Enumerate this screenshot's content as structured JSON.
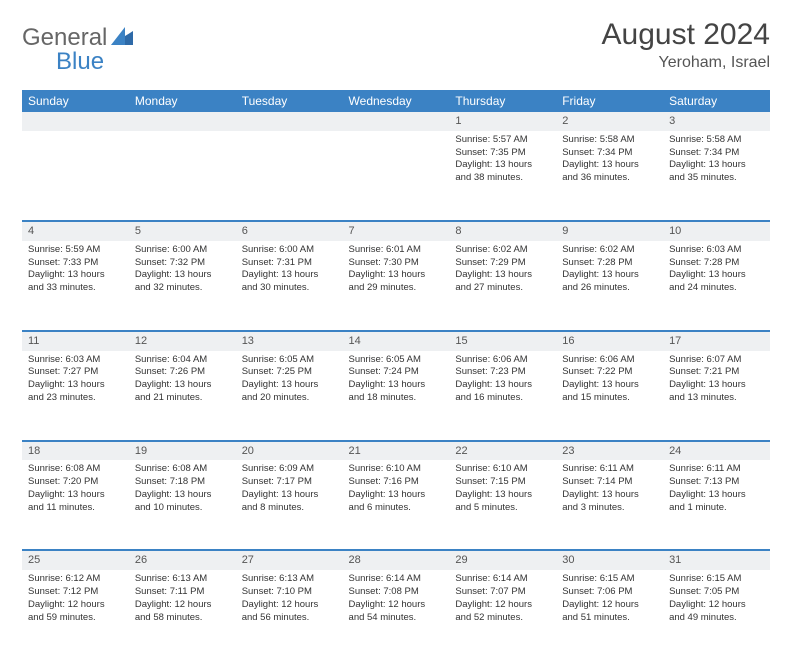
{
  "brand": {
    "part1": "General",
    "part2": "Blue"
  },
  "title": "August 2024",
  "location": "Yeroham, Israel",
  "colors": {
    "header_bg": "#3b82c4",
    "header_text": "#ffffff",
    "daynum_bg": "#eef0f2",
    "row_divider": "#3b82c4",
    "text": "#333333",
    "logo_gray": "#666666",
    "logo_blue": "#3b82c4"
  },
  "layout": {
    "cols": 7,
    "weeks": 5,
    "fontsize_header": 12,
    "fontsize_daynum": 11,
    "fontsize_cell": 9.5
  },
  "weekdays": [
    "Sunday",
    "Monday",
    "Tuesday",
    "Wednesday",
    "Thursday",
    "Friday",
    "Saturday"
  ],
  "weeks": [
    [
      null,
      null,
      null,
      null,
      {
        "n": "1",
        "sr": "5:57 AM",
        "ss": "7:35 PM",
        "dl": "13 hours and 38 minutes."
      },
      {
        "n": "2",
        "sr": "5:58 AM",
        "ss": "7:34 PM",
        "dl": "13 hours and 36 minutes."
      },
      {
        "n": "3",
        "sr": "5:58 AM",
        "ss": "7:34 PM",
        "dl": "13 hours and 35 minutes."
      }
    ],
    [
      {
        "n": "4",
        "sr": "5:59 AM",
        "ss": "7:33 PM",
        "dl": "13 hours and 33 minutes."
      },
      {
        "n": "5",
        "sr": "6:00 AM",
        "ss": "7:32 PM",
        "dl": "13 hours and 32 minutes."
      },
      {
        "n": "6",
        "sr": "6:00 AM",
        "ss": "7:31 PM",
        "dl": "13 hours and 30 minutes."
      },
      {
        "n": "7",
        "sr": "6:01 AM",
        "ss": "7:30 PM",
        "dl": "13 hours and 29 minutes."
      },
      {
        "n": "8",
        "sr": "6:02 AM",
        "ss": "7:29 PM",
        "dl": "13 hours and 27 minutes."
      },
      {
        "n": "9",
        "sr": "6:02 AM",
        "ss": "7:28 PM",
        "dl": "13 hours and 26 minutes."
      },
      {
        "n": "10",
        "sr": "6:03 AM",
        "ss": "7:28 PM",
        "dl": "13 hours and 24 minutes."
      }
    ],
    [
      {
        "n": "11",
        "sr": "6:03 AM",
        "ss": "7:27 PM",
        "dl": "13 hours and 23 minutes."
      },
      {
        "n": "12",
        "sr": "6:04 AM",
        "ss": "7:26 PM",
        "dl": "13 hours and 21 minutes."
      },
      {
        "n": "13",
        "sr": "6:05 AM",
        "ss": "7:25 PM",
        "dl": "13 hours and 20 minutes."
      },
      {
        "n": "14",
        "sr": "6:05 AM",
        "ss": "7:24 PM",
        "dl": "13 hours and 18 minutes."
      },
      {
        "n": "15",
        "sr": "6:06 AM",
        "ss": "7:23 PM",
        "dl": "13 hours and 16 minutes."
      },
      {
        "n": "16",
        "sr": "6:06 AM",
        "ss": "7:22 PM",
        "dl": "13 hours and 15 minutes."
      },
      {
        "n": "17",
        "sr": "6:07 AM",
        "ss": "7:21 PM",
        "dl": "13 hours and 13 minutes."
      }
    ],
    [
      {
        "n": "18",
        "sr": "6:08 AM",
        "ss": "7:20 PM",
        "dl": "13 hours and 11 minutes."
      },
      {
        "n": "19",
        "sr": "6:08 AM",
        "ss": "7:18 PM",
        "dl": "13 hours and 10 minutes."
      },
      {
        "n": "20",
        "sr": "6:09 AM",
        "ss": "7:17 PM",
        "dl": "13 hours and 8 minutes."
      },
      {
        "n": "21",
        "sr": "6:10 AM",
        "ss": "7:16 PM",
        "dl": "13 hours and 6 minutes."
      },
      {
        "n": "22",
        "sr": "6:10 AM",
        "ss": "7:15 PM",
        "dl": "13 hours and 5 minutes."
      },
      {
        "n": "23",
        "sr": "6:11 AM",
        "ss": "7:14 PM",
        "dl": "13 hours and 3 minutes."
      },
      {
        "n": "24",
        "sr": "6:11 AM",
        "ss": "7:13 PM",
        "dl": "13 hours and 1 minute."
      }
    ],
    [
      {
        "n": "25",
        "sr": "6:12 AM",
        "ss": "7:12 PM",
        "dl": "12 hours and 59 minutes."
      },
      {
        "n": "26",
        "sr": "6:13 AM",
        "ss": "7:11 PM",
        "dl": "12 hours and 58 minutes."
      },
      {
        "n": "27",
        "sr": "6:13 AM",
        "ss": "7:10 PM",
        "dl": "12 hours and 56 minutes."
      },
      {
        "n": "28",
        "sr": "6:14 AM",
        "ss": "7:08 PM",
        "dl": "12 hours and 54 minutes."
      },
      {
        "n": "29",
        "sr": "6:14 AM",
        "ss": "7:07 PM",
        "dl": "12 hours and 52 minutes."
      },
      {
        "n": "30",
        "sr": "6:15 AM",
        "ss": "7:06 PM",
        "dl": "12 hours and 51 minutes."
      },
      {
        "n": "31",
        "sr": "6:15 AM",
        "ss": "7:05 PM",
        "dl": "12 hours and 49 minutes."
      }
    ]
  ],
  "labels": {
    "sunrise": "Sunrise: ",
    "sunset": "Sunset: ",
    "daylight": "Daylight: "
  }
}
